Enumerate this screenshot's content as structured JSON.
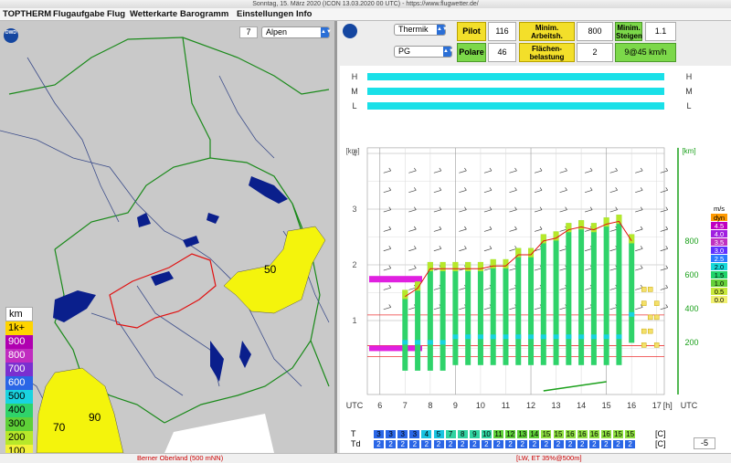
{
  "window": {
    "title": "Sonntag, 15. März 2020 (ICON 13.03.2020 00 UTC) - https://www.flugwetter.de/"
  },
  "menu": [
    "TOPTHERM",
    "Flugaufgabe",
    "Flug",
    "Wetterkarte",
    "Barogramm",
    "Einstellungen",
    "Info"
  ],
  "map": {
    "zoom_value": "7",
    "region_value": "Alpen",
    "labels": [
      "50",
      "70",
      "90"
    ],
    "legend": {
      "title": "km",
      "rows": [
        {
          "label": "1k+",
          "color": "#ffd400"
        },
        {
          "label": "900",
          "color": "#b000b0"
        },
        {
          "label": "800",
          "color": "#c02cc0"
        },
        {
          "label": "700",
          "color": "#7a2fd0"
        },
        {
          "label": "600",
          "color": "#2a66e6"
        },
        {
          "label": "500",
          "color": "#19d3e0"
        },
        {
          "label": "400",
          "color": "#2fd36a"
        },
        {
          "label": "300",
          "color": "#5ed038"
        },
        {
          "label": "200",
          "color": "#b7e82a"
        },
        {
          "label": "100",
          "color": "#f2f23a"
        }
      ]
    }
  },
  "controls": {
    "mode_select": "Thermik",
    "glider_select": "PG",
    "pilot_label": "Pilot",
    "pilot_value": "116",
    "polare_label": "Polare",
    "polare_value": "46",
    "min_work_label": "Minim. Arbeitsh.",
    "min_work_value": "800",
    "wing_load_label": "Flächen-belastung",
    "wing_load_value": "2",
    "min_climb_label": "Minim. Steigen",
    "min_climb_value": "1.1",
    "wind_readout": "9@45 km/h"
  },
  "chart": {
    "cloud_levels": [
      "H",
      "M",
      "L"
    ],
    "left_axis_unit": "[km]",
    "right_axis_unit": "[km]",
    "left_ticks": [
      "1",
      "2",
      "3",
      "4"
    ],
    "right_ticks": [
      "200",
      "400",
      "600",
      "800"
    ],
    "utc_label": "UTC",
    "x_ticks": [
      "6",
      "7",
      "8",
      "9",
      "10",
      "11",
      "12",
      "13",
      "14",
      "15",
      "16",
      "17"
    ],
    "x_unit": "[h]",
    "scale_unit": "m/s",
    "scale": [
      {
        "label": "dyn",
        "color": "#ff9900"
      },
      {
        "label": "4.5",
        "color": "#c000c0"
      },
      {
        "label": "4.0",
        "color": "#a020e0"
      },
      {
        "label": "3.5",
        "color": "#c030c0"
      },
      {
        "label": "3.0",
        "color": "#6030ff"
      },
      {
        "label": "2.5",
        "color": "#2a7aff"
      },
      {
        "label": "2.0",
        "color": "#18d8d8"
      },
      {
        "label": "1.5",
        "color": "#1fd36a"
      },
      {
        "label": "1.0",
        "color": "#66d13a"
      },
      {
        "label": "0.5",
        "color": "#c8e83a"
      },
      {
        "label": "0.0",
        "color": "#f0f070"
      }
    ],
    "temp_row_label": "T",
    "dew_row_label": "Td",
    "temp_values": [
      "3",
      "3",
      "3",
      "3",
      "4",
      "5",
      "7",
      "8",
      "9",
      "10",
      "11",
      "12",
      "13",
      "14",
      "15",
      "15",
      "16",
      "16",
      "16",
      "16",
      "15",
      "15"
    ],
    "dew_values": [
      "2",
      "2",
      "2",
      "2",
      "2",
      "2",
      "2",
      "2",
      "2",
      "2",
      "2",
      "2",
      "2",
      "2",
      "2",
      "2",
      "2",
      "2",
      "2",
      "2",
      "2",
      "2"
    ],
    "temp_unit": "[C]",
    "dew_unit": "[C]",
    "offset_value": "-5",
    "bars": [
      {
        "hour": 7.0,
        "top": 1.55,
        "base": 0.1
      },
      {
        "hour": 7.5,
        "top": 1.7,
        "base": 0.1
      },
      {
        "hour": 8.0,
        "top": 2.05,
        "base": 0.1
      },
      {
        "hour": 8.5,
        "top": 2.05,
        "base": 0.1
      },
      {
        "hour": 9.0,
        "top": 2.05,
        "base": 0.2
      },
      {
        "hour": 9.5,
        "top": 2.05,
        "base": 0.2
      },
      {
        "hour": 10.0,
        "top": 2.05,
        "base": 0.2
      },
      {
        "hour": 10.5,
        "top": 2.1,
        "base": 0.2
      },
      {
        "hour": 11.0,
        "top": 2.1,
        "base": 0.2
      },
      {
        "hour": 11.5,
        "top": 2.3,
        "base": 0.2
      },
      {
        "hour": 12.0,
        "top": 2.3,
        "base": 0.2
      },
      {
        "hour": 12.5,
        "top": 2.55,
        "base": 0.2
      },
      {
        "hour": 13.0,
        "top": 2.6,
        "base": 0.2
      },
      {
        "hour": 13.5,
        "top": 2.75,
        "base": 0.2
      },
      {
        "hour": 14.0,
        "top": 2.8,
        "base": 0.2
      },
      {
        "hour": 14.5,
        "top": 2.75,
        "base": 0.2
      },
      {
        "hour": 15.0,
        "top": 2.85,
        "base": 0.2
      },
      {
        "hour": 15.5,
        "top": 2.9,
        "base": 0.2
      },
      {
        "hour": 16.0,
        "top": 2.55,
        "base": 0.6
      }
    ]
  },
  "status": {
    "left": "Berner Oberland (500 mNN)",
    "right": "[LW, ET  35%@500m]"
  }
}
